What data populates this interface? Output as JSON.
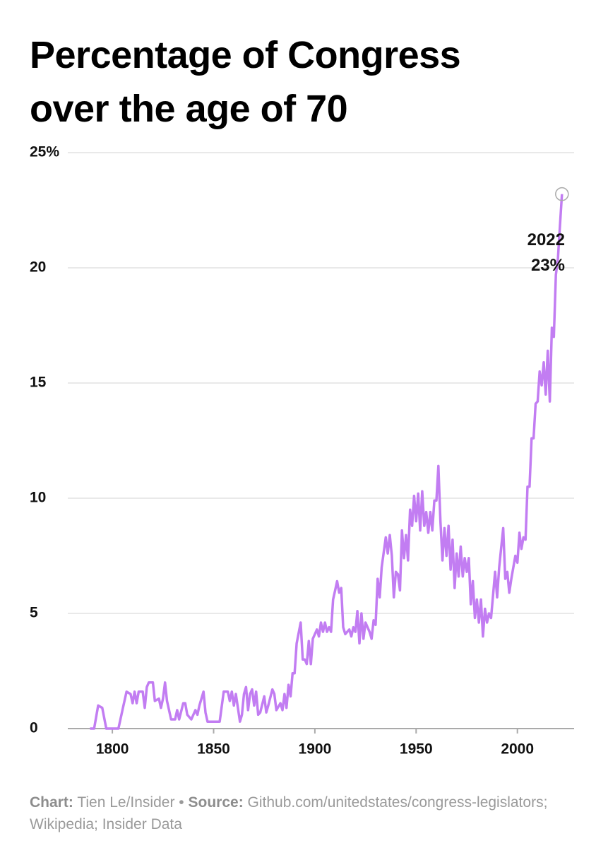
{
  "chart_data": {
    "type": "line",
    "title": "Percentage of Congress over the age of 70",
    "x": [
      1789,
      1791,
      1793,
      1795,
      1797,
      1799,
      1801,
      1803,
      1805,
      1807,
      1809,
      1810,
      1811,
      1812,
      1813,
      1815,
      1816,
      1817,
      1818,
      1820,
      1821,
      1823,
      1824,
      1825,
      1826,
      1827,
      1829,
      1831,
      1832,
      1833,
      1835,
      1836,
      1837,
      1839,
      1841,
      1842,
      1843,
      1845,
      1846,
      1847,
      1849,
      1851,
      1853,
      1855,
      1857,
      1858,
      1859,
      1860,
      1861,
      1863,
      1864,
      1865,
      1866,
      1867,
      1868,
      1869,
      1870,
      1871,
      1872,
      1873,
      1875,
      1876,
      1877,
      1879,
      1880,
      1881,
      1883,
      1884,
      1885,
      1886,
      1887,
      1888,
      1889,
      1890,
      1891,
      1893,
      1894,
      1895,
      1896,
      1897,
      1898,
      1899,
      1901,
      1902,
      1903,
      1904,
      1905,
      1906,
      1907,
      1908,
      1909,
      1910,
      1911,
      1912,
      1913,
      1914,
      1915,
      1917,
      1918,
      1919,
      1920,
      1921,
      1922,
      1923,
      1924,
      1925,
      1927,
      1928,
      1929,
      1930,
      1931,
      1932,
      1933,
      1935,
      1936,
      1937,
      1938,
      1939,
      1940,
      1941,
      1942,
      1943,
      1944,
      1945,
      1946,
      1947,
      1948,
      1949,
      1950,
      1951,
      1952,
      1953,
      1954,
      1955,
      1956,
      1957,
      1958,
      1959,
      1960,
      1961,
      1962,
      1963,
      1964,
      1965,
      1966,
      1967,
      1968,
      1969,
      1970,
      1971,
      1972,
      1973,
      1974,
      1975,
      1976,
      1977,
      1978,
      1979,
      1980,
      1981,
      1982,
      1983,
      1984,
      1985,
      1986,
      1987,
      1989,
      1990,
      1991,
      1993,
      1994,
      1995,
      1996,
      1997,
      1999,
      2000,
      2001,
      2002,
      2003,
      2004,
      2005,
      2006,
      2007,
      2008,
      2009,
      2010,
      2011,
      2012,
      2013,
      2014,
      2015,
      2016,
      2017,
      2018,
      2019,
      2020,
      2021,
      2022
    ],
    "values": [
      0,
      0,
      1.0,
      0.9,
      0,
      0,
      0,
      0,
      0.8,
      1.6,
      1.5,
      1.1,
      1.6,
      1.1,
      1.6,
      1.6,
      0.9,
      1.8,
      2.0,
      2.0,
      1.2,
      1.3,
      0.9,
      1.3,
      2.0,
      1.2,
      0.4,
      0.4,
      0.8,
      0.4,
      1.1,
      1.1,
      0.6,
      0.4,
      0.8,
      0.6,
      1.0,
      1.6,
      0.7,
      0.3,
      0.3,
      0.3,
      0.3,
      1.6,
      1.6,
      1.2,
      1.6,
      1.0,
      1.5,
      0.3,
      0.6,
      1.5,
      1.8,
      0.8,
      1.5,
      1.7,
      1.0,
      1.6,
      0.6,
      0.7,
      1.4,
      0.7,
      1.0,
      1.7,
      1.5,
      0.8,
      1.1,
      0.8,
      1.5,
      0.9,
      1.9,
      1.4,
      2.4,
      2.4,
      3.7,
      4.6,
      3.0,
      3.0,
      2.8,
      3.8,
      2.8,
      3.9,
      4.3,
      4.0,
      4.6,
      4.2,
      4.6,
      4.2,
      4.4,
      4.2,
      5.6,
      6.0,
      6.4,
      5.9,
      6.1,
      4.4,
      4.1,
      4.3,
      4.0,
      4.4,
      4.2,
      5.1,
      3.7,
      5.0,
      3.9,
      4.6,
      4.2,
      3.9,
      4.7,
      4.5,
      6.5,
      5.7,
      7.0,
      8.3,
      7.6,
      8.4,
      7.5,
      5.7,
      6.8,
      6.7,
      6.0,
      8.6,
      7.4,
      8.4,
      7.3,
      9.5,
      8.8,
      10.1,
      9.0,
      10.2,
      8.6,
      10.3,
      8.8,
      9.4,
      8.5,
      9.4,
      8.6,
      9.9,
      9.9,
      11.4,
      9.0,
      7.3,
      8.7,
      7.5,
      8.8,
      6.9,
      8.2,
      6.1,
      7.6,
      6.6,
      7.9,
      6.6,
      7.4,
      6.8,
      7.4,
      5.4,
      6.4,
      4.8,
      5.6,
      4.6,
      5.6,
      4.0,
      5.2,
      4.6,
      5.0,
      4.8,
      6.8,
      5.7,
      7.0,
      8.7,
      6.5,
      6.8,
      5.9,
      6.5,
      7.5,
      7.2,
      8.5,
      7.8,
      8.3,
      8.2,
      10.5,
      10.5,
      12.6,
      12.6,
      14.1,
      14.2,
      15.5,
      14.9,
      15.9,
      14.5,
      16.4,
      14.2,
      17.4,
      17.0,
      19.7,
      20.4,
      21.8,
      23.2
    ],
    "color": "#c27df2",
    "xlim": [
      1778,
      2028
    ],
    "xticks": [
      1800,
      1850,
      1900,
      1950,
      2000
    ],
    "ylim": [
      0,
      25
    ],
    "yticks": [
      0,
      5,
      10,
      15,
      {
        "value": 25,
        "label": "25%"
      },
      20
    ],
    "grid": true,
    "annotation": {
      "x": 2022,
      "y": 23.2,
      "text": [
        "2022",
        "23%"
      ]
    },
    "credit_label": "Chart:",
    "credit": "Tien Le/Insider",
    "separator": "•",
    "source_label": "Source:",
    "source": "Github.com/unitedstates/congress-legislators; Wikipedia; Insider Data"
  }
}
